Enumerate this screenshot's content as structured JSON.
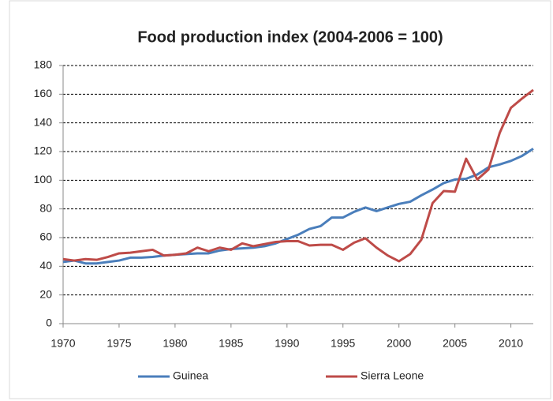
{
  "chart_data": {
    "type": "line",
    "title": "Food production index (2004-2006 = 100)",
    "x": [
      1970,
      1971,
      1972,
      1973,
      1974,
      1975,
      1976,
      1977,
      1978,
      1979,
      1980,
      1981,
      1982,
      1983,
      1984,
      1985,
      1986,
      1987,
      1988,
      1989,
      1990,
      1991,
      1992,
      1993,
      1994,
      1995,
      1996,
      1997,
      1998,
      1999,
      2000,
      2001,
      2002,
      2003,
      2004,
      2005,
      2006,
      2007,
      2008,
      2009,
      2010,
      2011,
      2012
    ],
    "series": [
      {
        "name": "Guinea",
        "color": "#4a7ebb",
        "values": [
          43,
          44,
          42,
          42,
          43,
          44,
          46,
          46,
          46.5,
          47.5,
          48,
          48.5,
          49,
          49,
          51,
          52,
          52.5,
          53,
          54,
          56,
          59,
          62,
          66,
          68,
          74,
          74,
          78,
          81,
          78.5,
          81,
          83.5,
          85,
          89.5,
          93.5,
          98,
          100.5,
          101,
          104,
          109,
          111,
          113.5,
          117,
          122
        ]
      },
      {
        "name": "Sierra Leone",
        "color": "#be4b48",
        "values": [
          45,
          44,
          45,
          44.5,
          46.5,
          49,
          49.5,
          50.5,
          51.5,
          47.5,
          48,
          49,
          53,
          50.5,
          53,
          51.5,
          56,
          54,
          55.5,
          57,
          57.5,
          57.5,
          54.5,
          55,
          55,
          51.5,
          56.5,
          59.5,
          53,
          47.5,
          43.5,
          48.5,
          58.5,
          84,
          92.5,
          92,
          115,
          100.5,
          107.5,
          133,
          150.5,
          157,
          163
        ]
      }
    ],
    "xlim": [
      1970,
      2012
    ],
    "xticks": [
      1970,
      1975,
      1980,
      1985,
      1990,
      1995,
      2000,
      2005,
      2010
    ],
    "ylim": [
      0,
      180
    ],
    "yticks": [
      0,
      20,
      40,
      60,
      80,
      100,
      120,
      140,
      160,
      180
    ],
    "grid": true,
    "legend": "bottom"
  }
}
